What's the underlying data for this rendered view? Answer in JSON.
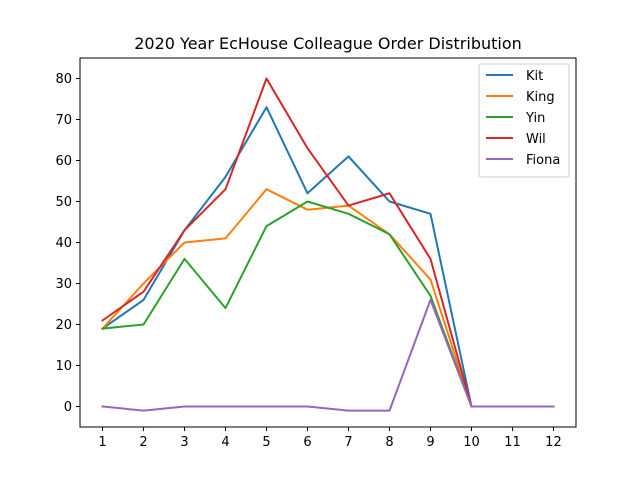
{
  "chart_data": {
    "type": "line",
    "title": "2020 Year EcHouse Colleague Order Distribution",
    "xlabel": "",
    "ylabel": "",
    "x": [
      1,
      2,
      3,
      4,
      5,
      6,
      7,
      8,
      9,
      10,
      11,
      12
    ],
    "xlim": [
      0.45,
      12.55
    ],
    "ylim": [
      -5,
      85
    ],
    "x_ticks": [
      1,
      2,
      3,
      4,
      5,
      6,
      7,
      8,
      9,
      10,
      11,
      12
    ],
    "y_ticks": [
      0,
      10,
      20,
      30,
      40,
      50,
      60,
      70,
      80
    ],
    "grid": false,
    "legend_position": "top-right",
    "series": [
      {
        "name": "Kit",
        "color": "#1f77b4",
        "values": [
          19,
          26,
          43,
          56,
          73,
          52,
          61,
          50,
          47,
          0,
          0,
          0
        ]
      },
      {
        "name": "King",
        "color": "#ff7f0e",
        "values": [
          19,
          30,
          40,
          41,
          53,
          48,
          49,
          42,
          31,
          0,
          0,
          0
        ]
      },
      {
        "name": "Yin",
        "color": "#2ca02c",
        "values": [
          19,
          20,
          36,
          24,
          44,
          50,
          47,
          42,
          27,
          0,
          0,
          0
        ]
      },
      {
        "name": "Wil",
        "color": "#d62728",
        "values": [
          21,
          28,
          43,
          53,
          80,
          63,
          49,
          52,
          36,
          0,
          0,
          0
        ]
      },
      {
        "name": "Fiona",
        "color": "#9467bd",
        "values": [
          0,
          -1,
          0,
          0,
          0,
          0,
          -1,
          -1,
          26,
          0,
          0,
          0
        ]
      }
    ]
  }
}
